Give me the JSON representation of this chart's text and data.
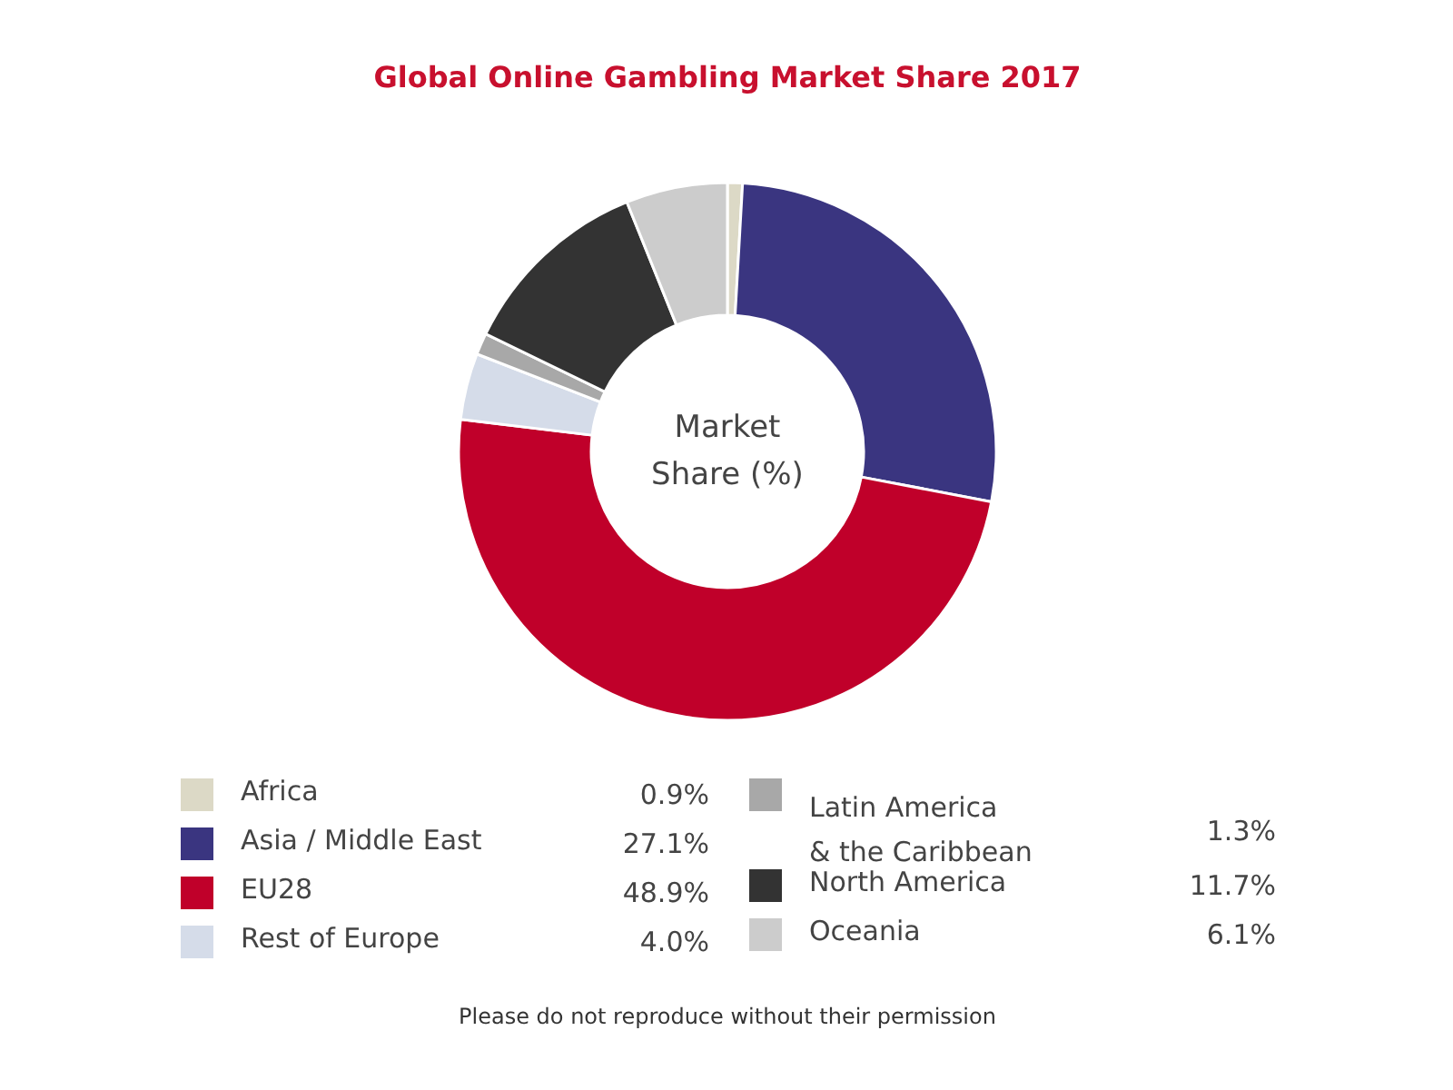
{
  "chart_data": {
    "type": "donut",
    "title": "Global Online Gambling Market Share 2017",
    "categories": [
      "Africa",
      "Asia / Middle East",
      "EU28",
      "Rest of Europe",
      "Latin America\n& the Caribbean",
      "North America",
      "Oceania"
    ],
    "values": [
      0.9,
      27.1,
      48.9,
      4.0,
      1.3,
      11.7,
      6.1
    ],
    "value_labels": [
      "0.9%",
      "27.1%",
      "48.9%",
      "4.0%",
      "1.3%",
      "11.7%",
      "6.1%"
    ],
    "colors": [
      "#dcd9c6",
      "#3a3580",
      "#c0002a",
      "#d5dce9",
      "#a8a8a8",
      "#333333",
      "#cccccc"
    ],
    "legend": "bottom",
    "annotations": [
      "Market\nShare (%)",
      "Please do not reproduce without their permission"
    ]
  }
}
